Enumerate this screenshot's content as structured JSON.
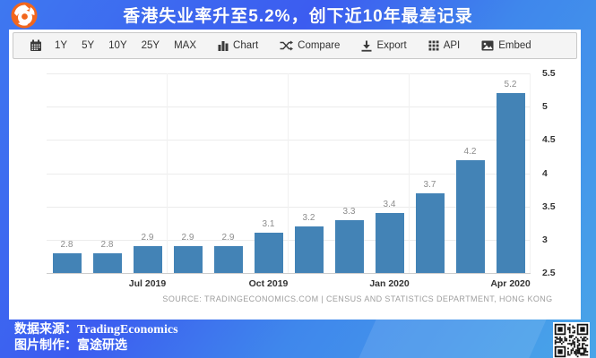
{
  "banner": {
    "title": "香港失业率升至5.2%，创下近10年最差记录"
  },
  "toolbar": {
    "ranges": [
      "1Y",
      "5Y",
      "10Y",
      "25Y",
      "MAX"
    ],
    "actions": [
      {
        "icon": "bar-chart-icon",
        "label": "Chart"
      },
      {
        "icon": "shuffle-icon",
        "label": "Compare"
      },
      {
        "icon": "download-icon",
        "label": "Export"
      },
      {
        "icon": "grid-dots-icon",
        "label": "API"
      },
      {
        "icon": "image-icon",
        "label": "Embed"
      }
    ]
  },
  "chart_data": {
    "type": "bar",
    "title": "",
    "xlabel": "",
    "ylabel": "",
    "categories": [
      "",
      "",
      "Jul 2019",
      "",
      "",
      "Oct 2019",
      "",
      "",
      "Jan 2020",
      "",
      "",
      "Apr 2020"
    ],
    "values": [
      2.8,
      2.8,
      2.9,
      2.9,
      2.9,
      3.1,
      3.2,
      3.3,
      3.4,
      3.7,
      4.2,
      5.2
    ],
    "value_labels": [
      "2.8",
      "2.8",
      "2.9",
      "2.9",
      "2.9",
      "3.1",
      "3.2",
      "3.3",
      "3.4",
      "3.7",
      "4.2",
      "5.2"
    ],
    "ylim": [
      2.5,
      5.5
    ],
    "yticks": [
      5.5,
      5,
      4.5,
      4,
      3.5,
      3,
      2.5
    ],
    "ytick_labels": [
      "5.5",
      "5",
      "4.5",
      "4",
      "3.5",
      "3",
      "2.5"
    ],
    "grid": "on",
    "legend": "none",
    "bar_color": "#4383b6"
  },
  "source_line": "SOURCE: TRADINGECONOMICS.COM | CENSUS AND STATISTICS DEPARTMENT, HONG KONG",
  "footer": {
    "line1": "数据来源：TradingEconomics",
    "line2": "图片制作：富途研选"
  },
  "colors": {
    "banner_blue": "#3e78f0",
    "background_light_blue": "#49a5e8",
    "bar_blue": "#4383b6",
    "logo_orange": "#f2661c",
    "toolbar_bg": "#f4f4f4",
    "axis_text": "#333333",
    "value_label_gray": "#8c8c8c",
    "source_gray": "#9e9e9e"
  }
}
